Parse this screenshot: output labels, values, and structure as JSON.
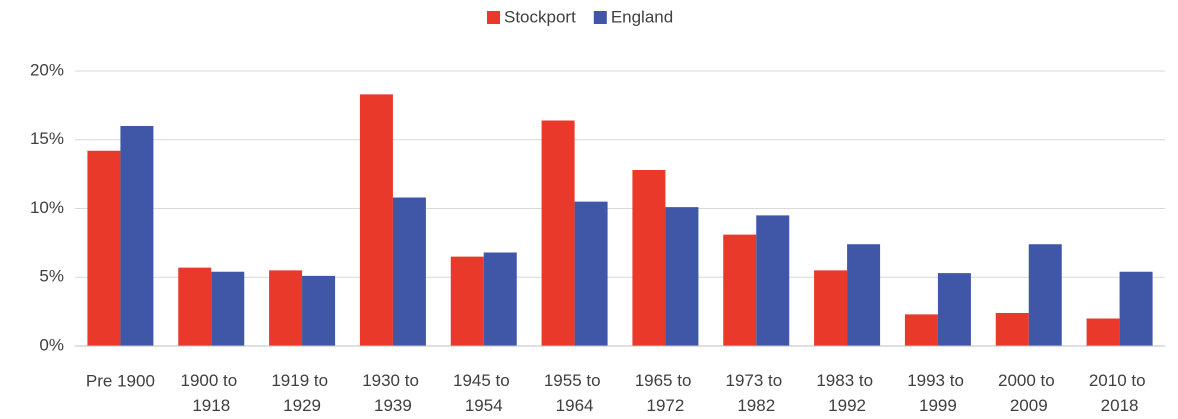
{
  "chart_data": {
    "type": "bar",
    "categories": [
      "Pre 1900",
      "1900 to 1918",
      "1919 to 1929",
      "1930 to 1939",
      "1945 to 1954",
      "1955 to 1964",
      "1965 to 1972",
      "1973 to 1982",
      "1983 to 1992",
      "1993 to 1999",
      "2000 to 2009",
      "2010 to 2018"
    ],
    "series": [
      {
        "name": "Stockport",
        "color": "#e8392a",
        "values": [
          14.2,
          5.7,
          5.5,
          18.3,
          6.5,
          16.4,
          12.8,
          8.1,
          5.5,
          2.3,
          2.4,
          2.0
        ]
      },
      {
        "name": "England",
        "color": "#3f57a6",
        "values": [
          16.0,
          5.4,
          5.1,
          10.8,
          6.8,
          10.5,
          10.1,
          9.5,
          7.4,
          5.3,
          7.4,
          5.4
        ]
      }
    ],
    "ylim": [
      0,
      20
    ],
    "yticks": [
      {
        "value": 0,
        "label": "0%"
      },
      {
        "value": 5,
        "label": "5%"
      },
      {
        "value": 10,
        "label": "10%"
      },
      {
        "value": 15,
        "label": "15%"
      },
      {
        "value": 20,
        "label": "20%"
      }
    ],
    "grid": true,
    "legend": "top"
  }
}
